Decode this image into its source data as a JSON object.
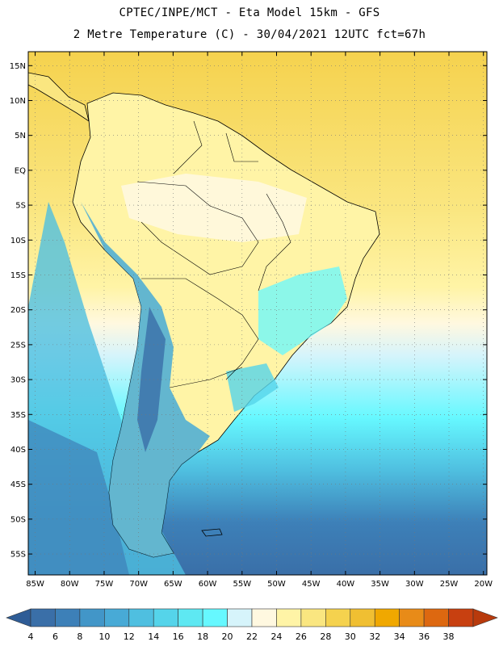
{
  "title_line1": "CPTEC/INPE/MCT -  Eta Model 15km - GFS",
  "title_line2": "2 Metre Temperature (C) - 30/04/2021 12UTC fct=67h",
  "map": {
    "lat_labels": [
      "15N",
      "10N",
      "5N",
      "EQ",
      "5S",
      "10S",
      "15S",
      "20S",
      "25S",
      "30S",
      "35S",
      "40S",
      "45S",
      "50S",
      "55S"
    ],
    "lon_labels": [
      "85W",
      "80W",
      "75W",
      "70W",
      "65W",
      "60W",
      "55W",
      "50W",
      "45W",
      "40W",
      "35W",
      "30W",
      "25W",
      "20W"
    ],
    "extent": {
      "lon": [
        -86,
        -19.5
      ],
      "lat": [
        -58,
        17
      ]
    }
  },
  "colorbar": {
    "labels": [
      "4",
      "6",
      "8",
      "10",
      "12",
      "14",
      "16",
      "18",
      "20",
      "22",
      "24",
      "26",
      "28",
      "30",
      "32",
      "34",
      "36",
      "38"
    ],
    "colors": [
      "#3a6fa8",
      "#3d80b8",
      "#4296c8",
      "#48aad6",
      "#4fbfe0",
      "#55d4ea",
      "#5ee8f2",
      "#66f8ff",
      "#d6f4fb",
      "#fff8e0",
      "#fff4a6",
      "#fae680",
      "#f5d24e",
      "#f0bf32",
      "#f0a800",
      "#e88b18",
      "#dd6810",
      "#c84010"
    ],
    "underflow_color": "#2e5c96",
    "overflow_color": "#b83a0c"
  }
}
